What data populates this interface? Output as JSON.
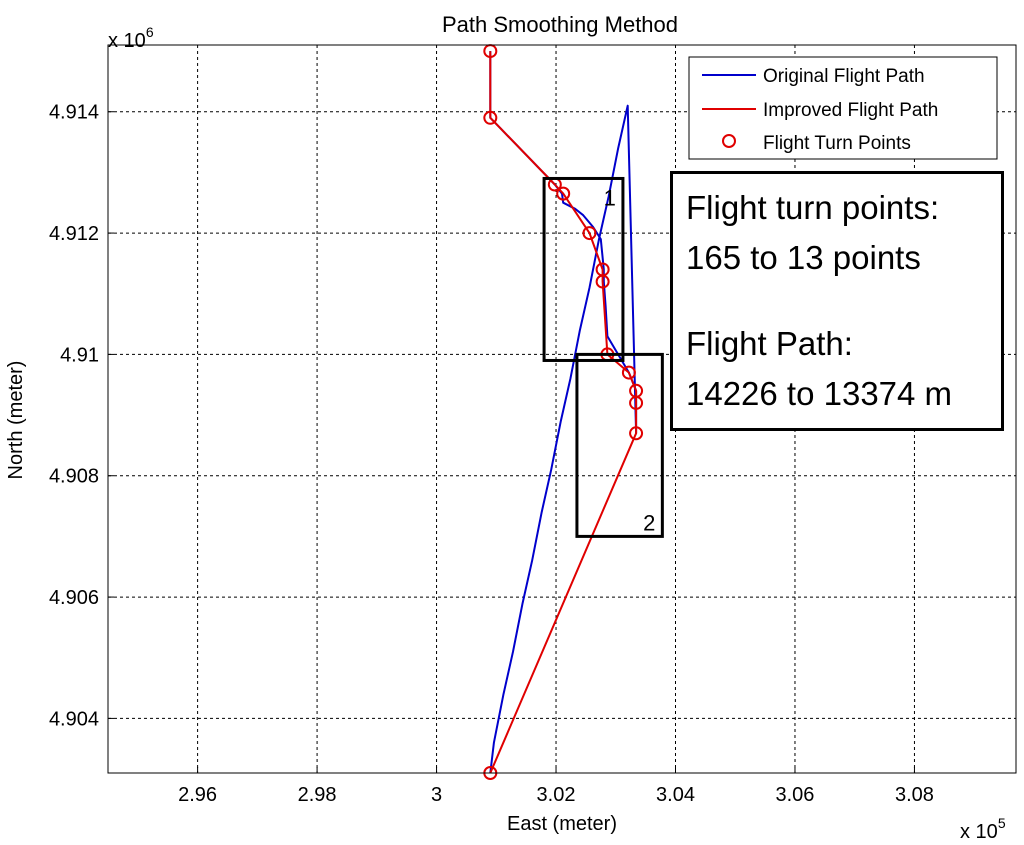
{
  "chart_data": {
    "type": "line",
    "title": "Path Smoothing Method",
    "xlabel": "East (meter)",
    "ylabel": "North (meter)",
    "x_multiplier": "x 10",
    "x_exponent": "5",
    "y_multiplier": "x 10",
    "y_exponent": "6",
    "xlim": [
      2.945,
      3.097
    ],
    "ylim": [
      4.9031,
      4.9151
    ],
    "x_ticks": [
      2.96,
      2.98,
      3.0,
      3.02,
      3.04,
      3.06,
      3.08
    ],
    "x_tick_labels": [
      "2.96",
      "2.98",
      "3",
      "3.02",
      "3.04",
      "3.06",
      "3.08"
    ],
    "y_ticks": [
      4.904,
      4.906,
      4.908,
      4.91,
      4.912,
      4.914
    ],
    "y_tick_labels": [
      "4.904",
      "4.906",
      "4.908",
      "4.91",
      "4.912",
      "4.914"
    ],
    "grid": true,
    "legend_position": "top-right",
    "series": [
      {
        "name": "Original Flight Path",
        "color": "#0000cc",
        "x": [
          3.009,
          3.0096,
          3.0112,
          3.0128,
          3.0144,
          3.016,
          3.0176,
          3.0192,
          3.0208,
          3.0224,
          3.024,
          3.0256,
          3.0272,
          3.0288,
          3.0304,
          3.032,
          3.0334,
          3.0334,
          3.0334,
          3.0322,
          3.0286,
          3.0283,
          3.028,
          3.028,
          3.0277,
          3.0275,
          3.0262,
          3.0245,
          3.0232,
          3.0212,
          3.021,
          3.0198,
          3.009,
          3.009
        ],
        "y": [
          4.9031,
          4.9036,
          4.9044,
          4.9051,
          4.9059,
          4.9066,
          4.9074,
          4.9081,
          4.9089,
          4.9096,
          4.9104,
          4.9111,
          4.9119,
          4.9126,
          4.9134,
          4.9141,
          4.9087,
          4.9092,
          4.9094,
          4.9097,
          4.9103,
          4.9108,
          4.9112,
          4.9114,
          4.9117,
          4.9119,
          4.9121,
          4.9123,
          4.9124,
          4.9125,
          4.91265,
          4.9128,
          4.9139,
          4.915
        ]
      },
      {
        "name": "Improved Flight Path",
        "color": "#e00000",
        "x": [
          3.009,
          3.0334,
          3.0334,
          3.0334,
          3.0322,
          3.0286,
          3.0278,
          3.0278,
          3.0256,
          3.0212,
          3.0198,
          3.009,
          3.009
        ],
        "y": [
          4.9031,
          4.9087,
          4.9092,
          4.9094,
          4.9097,
          4.91,
          4.9112,
          4.9114,
          4.912,
          4.91265,
          4.9128,
          4.9139,
          4.915
        ]
      }
    ],
    "markers": {
      "name": "Flight Turn Points",
      "color": "#e00000",
      "x": [
        3.009,
        3.0334,
        3.0334,
        3.0334,
        3.0322,
        3.0286,
        3.0278,
        3.0278,
        3.0256,
        3.0212,
        3.0198,
        3.009,
        3.009
      ],
      "y": [
        4.9031,
        4.9087,
        4.9092,
        4.9094,
        4.9097,
        4.91,
        4.9112,
        4.9114,
        4.912,
        4.91265,
        4.9128,
        4.9139,
        4.915
      ]
    },
    "regions": [
      {
        "label": "1",
        "x": [
          3.018,
          3.0312
        ],
        "y": [
          4.9099,
          4.9129
        ]
      },
      {
        "label": "2",
        "x": [
          3.0235,
          3.0378
        ],
        "y": [
          4.907,
          4.91
        ]
      }
    ],
    "annotation": {
      "lines": [
        "Flight turn points:",
        "165 to 13 points",
        "",
        "Flight Path:",
        "14226 to 13374 m"
      ]
    }
  }
}
